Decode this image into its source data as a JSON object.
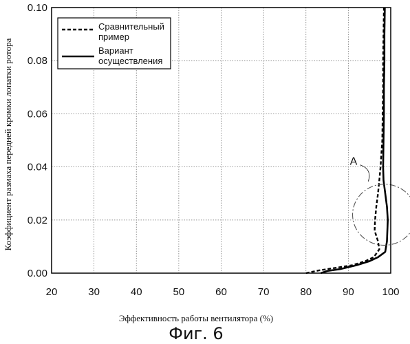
{
  "chart_data": {
    "type": "line",
    "xlabel": "Эффективность работы вентилятора (%)",
    "ylabel": "Коэффициент размаха передней кромки лопатки ротора",
    "xlim": [
      20,
      100
    ],
    "ylim": [
      0,
      0.1
    ],
    "x_ticks": [
      "20",
      "30",
      "40",
      "50",
      "60",
      "70",
      "80",
      "90",
      "100"
    ],
    "y_ticks": [
      "0.00",
      "0.02",
      "0.04",
      "0.06",
      "0.08",
      "0.10"
    ],
    "grid": true,
    "legend_position": "top-left",
    "series": [
      {
        "name": "Сравнительный пример",
        "style": "dashed",
        "color": "#000000",
        "points": [
          [
            80,
            0.0
          ],
          [
            83,
            0.001
          ],
          [
            87,
            0.002
          ],
          [
            91,
            0.003
          ],
          [
            94,
            0.0045
          ],
          [
            96,
            0.006
          ],
          [
            97.3,
            0.009
          ],
          [
            97,
            0.012
          ],
          [
            96.2,
            0.016
          ],
          [
            96.3,
            0.02
          ],
          [
            96.6,
            0.025
          ],
          [
            97,
            0.03
          ],
          [
            97.3,
            0.035
          ],
          [
            97.6,
            0.04
          ],
          [
            97.8,
            0.045
          ],
          [
            98,
            0.05
          ],
          [
            98.1,
            0.06
          ],
          [
            98.2,
            0.07
          ],
          [
            98.2,
            0.08
          ],
          [
            98.3,
            0.09
          ],
          [
            98.4,
            0.1
          ]
        ]
      },
      {
        "name": "Вариант осуществления",
        "style": "solid",
        "color": "#000000",
        "points": [
          [
            83.5,
            0.0
          ],
          [
            85,
            0.0008
          ],
          [
            88,
            0.0015
          ],
          [
            92,
            0.003
          ],
          [
            95,
            0.0045
          ],
          [
            97,
            0.006
          ],
          [
            98.7,
            0.008
          ],
          [
            99.1,
            0.012
          ],
          [
            99.3,
            0.02
          ],
          [
            99.1,
            0.025
          ],
          [
            98.7,
            0.03
          ],
          [
            98.3,
            0.035
          ],
          [
            98.2,
            0.04
          ],
          [
            98.3,
            0.05
          ],
          [
            98.4,
            0.06
          ],
          [
            98.4,
            0.07
          ],
          [
            98.5,
            0.08
          ],
          [
            98.5,
            0.09
          ],
          [
            98.6,
            0.1
          ]
        ]
      }
    ],
    "annotations": [
      {
        "label": "A",
        "center": [
          98.5,
          0.022
        ],
        "radius": [
          7.5,
          0.0115
        ]
      }
    ]
  },
  "figure": {
    "caption": "Фиг. 6"
  }
}
